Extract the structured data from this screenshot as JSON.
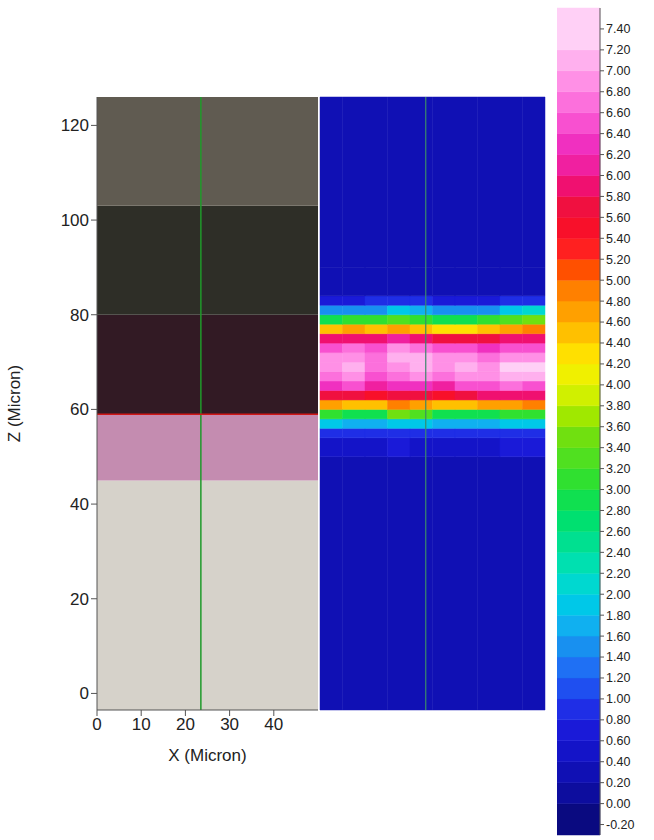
{
  "chart_data": {
    "type": "heatmap",
    "x_label": "X (Micron)",
    "y_label": "Z (Micron)",
    "xlim": [
      0,
      50
    ],
    "xticks": [
      0,
      10,
      20,
      30,
      40
    ],
    "ylim": [
      -3.5,
      126
    ],
    "yticks": [
      0,
      20,
      40,
      60,
      80,
      100,
      120
    ],
    "grid": false,
    "cursor": {
      "x": 23.5,
      "z": 59
    },
    "image_layers": [
      {
        "z": [
          -3.5,
          45
        ],
        "color": "#d6d2ca"
      },
      {
        "z": [
          45,
          59
        ],
        "color": "#c48cb0"
      },
      {
        "z": [
          59,
          80
        ],
        "color": "#321a24"
      },
      {
        "z": [
          80,
          103
        ],
        "color": "#2e2e27"
      },
      {
        "z": [
          103,
          126
        ],
        "color": "#605b51"
      }
    ],
    "cells": {
      "x_edges": [
        0,
        5,
        10,
        15,
        20,
        25,
        30,
        35,
        40,
        45,
        50
      ],
      "z_edges": [
        -3.5,
        50,
        54,
        56,
        58,
        60,
        62,
        64,
        66,
        68,
        70,
        72,
        74,
        76,
        78,
        80,
        82,
        84,
        90,
        126
      ],
      "values": [
        [
          0.3,
          0.3,
          0.3,
          0.3,
          0.3,
          0.3,
          0.3,
          0.3,
          0.3,
          0.3
        ],
        [
          0.5,
          0.5,
          0.5,
          0.6,
          0.5,
          0.5,
          0.5,
          0.5,
          0.6,
          0.6
        ],
        [
          0.9,
          0.9,
          0.9,
          0.9,
          0.9,
          0.9,
          0.9,
          0.9,
          0.9,
          0.9
        ],
        [
          1.8,
          1.6,
          1.6,
          1.8,
          1.8,
          1.6,
          1.6,
          1.6,
          1.8,
          1.8
        ],
        [
          3.0,
          2.8,
          2.8,
          3.4,
          3.2,
          2.8,
          2.8,
          2.9,
          3.0,
          3.0
        ],
        [
          4.6,
          4.4,
          4.4,
          4.8,
          4.6,
          4.4,
          4.4,
          4.6,
          4.6,
          4.8
        ],
        [
          5.6,
          5.6,
          5.4,
          5.6,
          5.6,
          5.4,
          5.6,
          5.8,
          5.8,
          5.8
        ],
        [
          6.2,
          6.4,
          6.0,
          6.2,
          6.2,
          6.0,
          6.4,
          6.4,
          6.6,
          6.4
        ],
        [
          6.6,
          6.8,
          6.4,
          6.6,
          6.8,
          6.6,
          6.8,
          6.8,
          7.0,
          7.0
        ],
        [
          6.8,
          7.0,
          6.6,
          6.8,
          7.0,
          6.8,
          7.0,
          6.8,
          7.2,
          7.2
        ],
        [
          6.8,
          6.8,
          6.6,
          7.0,
          7.0,
          6.8,
          6.8,
          6.6,
          6.8,
          6.8
        ],
        [
          6.4,
          6.6,
          6.4,
          6.8,
          6.6,
          6.4,
          6.4,
          6.2,
          6.4,
          6.4
        ],
        [
          5.8,
          5.8,
          5.8,
          6.0,
          5.8,
          5.6,
          5.6,
          5.6,
          5.8,
          5.8
        ],
        [
          4.4,
          4.6,
          4.4,
          4.6,
          4.4,
          4.2,
          4.2,
          4.4,
          4.6,
          4.8
        ],
        [
          2.8,
          3.0,
          3.0,
          3.2,
          3.0,
          2.8,
          2.8,
          3.0,
          3.2,
          3.4
        ],
        [
          1.4,
          1.4,
          1.5,
          1.8,
          1.6,
          1.4,
          1.4,
          1.4,
          1.8,
          2.0
        ],
        [
          0.7,
          0.7,
          0.8,
          0.8,
          0.8,
          0.7,
          0.7,
          0.7,
          0.8,
          0.9
        ],
        [
          0.3,
          0.3,
          0.3,
          0.3,
          0.3,
          0.3,
          0.3,
          0.3,
          0.3,
          0.3
        ],
        [
          0.2,
          0.2,
          0.2,
          0.2,
          0.2,
          0.2,
          0.2,
          0.2,
          0.2,
          0.2
        ]
      ]
    },
    "colorbar": {
      "range": [
        -0.3,
        7.6
      ],
      "ticks": [
        {
          "value": -0.2,
          "label": "-0.20"
        },
        {
          "value": 0,
          "label": "0.00"
        },
        {
          "value": 0.2,
          "label": "0.20"
        },
        {
          "value": 0.4,
          "label": "0.40"
        },
        {
          "value": 0.6,
          "label": "0.60"
        },
        {
          "value": 0.8,
          "label": "0.80"
        },
        {
          "value": 1.0,
          "label": "1.00"
        },
        {
          "value": 1.2,
          "label": "1.20"
        },
        {
          "value": 1.4,
          "label": "1.40"
        },
        {
          "value": 1.6,
          "label": "1.60"
        },
        {
          "value": 1.8,
          "label": "1.80"
        },
        {
          "value": 2.0,
          "label": "2.00"
        },
        {
          "value": 2.2,
          "label": "2.20"
        },
        {
          "value": 2.4,
          "label": "2.40"
        },
        {
          "value": 2.6,
          "label": "2.60"
        },
        {
          "value": 2.8,
          "label": "2.80"
        },
        {
          "value": 3.0,
          "label": "3.00"
        },
        {
          "value": 3.2,
          "label": "3.20"
        },
        {
          "value": 3.4,
          "label": "3.40"
        },
        {
          "value": 3.6,
          "label": "3.60"
        },
        {
          "value": 3.8,
          "label": "3.80"
        },
        {
          "value": 4.0,
          "label": "4.00"
        },
        {
          "value": 4.2,
          "label": "4.20"
        },
        {
          "value": 4.4,
          "label": "4.40"
        },
        {
          "value": 4.6,
          "label": "4.60"
        },
        {
          "value": 4.8,
          "label": "4.80"
        },
        {
          "value": 5.0,
          "label": "5.00"
        },
        {
          "value": 5.2,
          "label": "5.20"
        },
        {
          "value": 5.4,
          "label": "5.40"
        },
        {
          "value": 5.6,
          "label": "5.60"
        },
        {
          "value": 5.8,
          "label": "5.80"
        },
        {
          "value": 6.0,
          "label": "6.00"
        },
        {
          "value": 6.2,
          "label": "6.20"
        },
        {
          "value": 6.4,
          "label": "6.40"
        },
        {
          "value": 6.6,
          "label": "6.60"
        },
        {
          "value": 6.8,
          "label": "6.80"
        },
        {
          "value": 7.0,
          "label": "7.00"
        },
        {
          "value": 7.2,
          "label": "7.20"
        },
        {
          "value": 7.4,
          "label": "7.40"
        }
      ],
      "colors": [
        "#0a0a80",
        "#0d0d9e",
        "#1010b4",
        "#1414c8",
        "#1a1ad8",
        "#1f2ee6",
        "#1f4ff0",
        "#1f70f4",
        "#1890f0",
        "#10b0f0",
        "#00c8e8",
        "#00d8d0",
        "#00e0b0",
        "#00e090",
        "#00e070",
        "#10e050",
        "#30e030",
        "#50e020",
        "#70e010",
        "#a0e800",
        "#d0f000",
        "#f0f000",
        "#ffe000",
        "#ffc000",
        "#ffa000",
        "#ff8000",
        "#ff5000",
        "#ff2020",
        "#f8102a",
        "#f01040",
        "#f01070",
        "#f020a0",
        "#f030c0",
        "#f850d0",
        "#fc70dc",
        "#ff90e6",
        "#ffb0ee",
        "#ffd0f6"
      ]
    }
  }
}
